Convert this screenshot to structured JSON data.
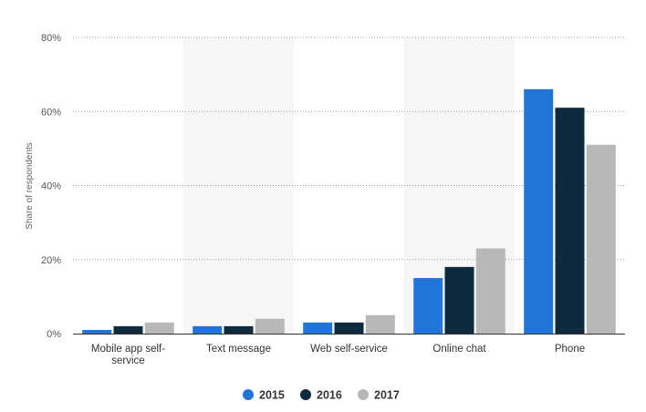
{
  "chart_data": {
    "type": "bar",
    "title": "",
    "xlabel": "",
    "ylabel": "Share of respondents",
    "ylim": [
      0,
      80
    ],
    "y_ticks": [
      0,
      20,
      40,
      60,
      80
    ],
    "y_tick_labels": [
      "0%",
      "20%",
      "40%",
      "60%",
      "80%"
    ],
    "grid": true,
    "legend_position": "bottom",
    "categories": [
      "Mobile app self-service",
      "Text message",
      "Web self-service",
      "Online chat",
      "Phone"
    ],
    "category_display_lines": [
      [
        "Mobile app self-",
        "service"
      ],
      [
        "Text message"
      ],
      [
        "Web self-service"
      ],
      [
        "Online chat"
      ],
      [
        "Phone"
      ]
    ],
    "series": [
      {
        "name": "2015",
        "color": "#2175d9",
        "values": [
          1,
          2,
          3,
          15,
          66
        ]
      },
      {
        "name": "2016",
        "color": "#0d2a3e",
        "values": [
          2,
          2,
          3,
          18,
          61
        ]
      },
      {
        "name": "2017",
        "color": "#b8b8b8",
        "values": [
          3,
          4,
          5,
          23,
          51
        ]
      }
    ]
  }
}
